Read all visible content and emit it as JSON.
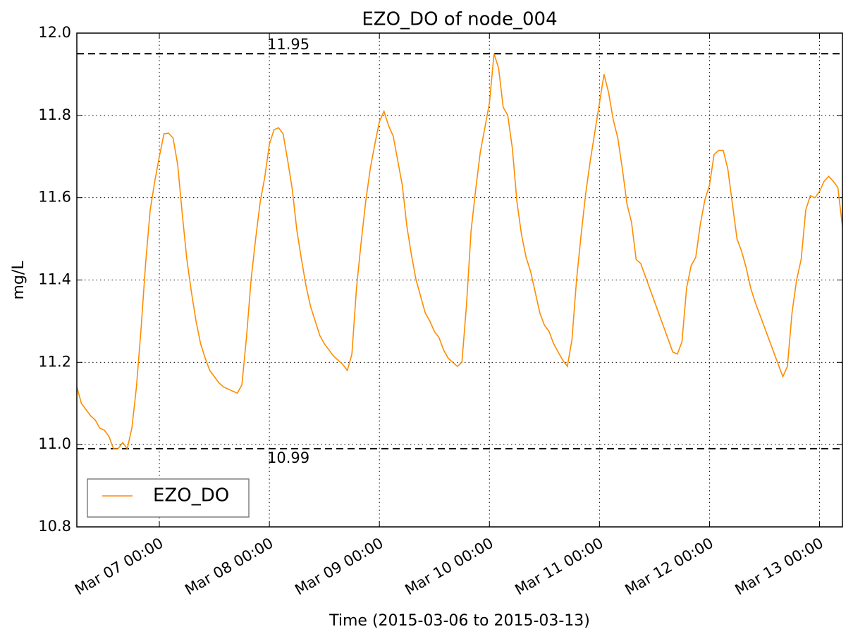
{
  "chart_data": {
    "type": "line",
    "title": "EZO_DO of node_004",
    "xlabel": "Time (2015-03-06 to 2015-03-13)",
    "ylabel": "mg/L",
    "x": [
      "Mar 06 06:00",
      "Mar 06 07:00",
      "Mar 06 08:00",
      "Mar 06 09:00",
      "Mar 06 10:00",
      "Mar 06 11:00",
      "Mar 06 12:00",
      "Mar 06 13:00",
      "Mar 06 14:00",
      "Mar 06 15:00",
      "Mar 06 16:00",
      "Mar 06 17:00",
      "Mar 06 18:00",
      "Mar 06 19:00",
      "Mar 06 20:00",
      "Mar 06 21:00",
      "Mar 06 22:00",
      "Mar 06 23:00",
      "Mar 07 00:00",
      "Mar 07 01:00",
      "Mar 07 02:00",
      "Mar 07 03:00",
      "Mar 07 04:00",
      "Mar 07 05:00",
      "Mar 07 06:00",
      "Mar 07 07:00",
      "Mar 07 08:00",
      "Mar 07 09:00",
      "Mar 07 10:00",
      "Mar 07 11:00",
      "Mar 07 12:00",
      "Mar 07 13:00",
      "Mar 07 14:00",
      "Mar 07 15:00",
      "Mar 07 16:00",
      "Mar 07 17:00",
      "Mar 07 18:00",
      "Mar 07 19:00",
      "Mar 07 20:00",
      "Mar 07 21:00",
      "Mar 07 22:00",
      "Mar 07 23:00",
      "Mar 08 00:00",
      "Mar 08 01:00",
      "Mar 08 02:00",
      "Mar 08 03:00",
      "Mar 08 04:00",
      "Mar 08 05:00",
      "Mar 08 06:00",
      "Mar 08 07:00",
      "Mar 08 08:00",
      "Mar 08 09:00",
      "Mar 08 10:00",
      "Mar 08 11:00",
      "Mar 08 12:00",
      "Mar 08 13:00",
      "Mar 08 14:00",
      "Mar 08 15:00",
      "Mar 08 16:00",
      "Mar 08 17:00",
      "Mar 08 18:00",
      "Mar 08 19:00",
      "Mar 08 20:00",
      "Mar 08 21:00",
      "Mar 08 22:00",
      "Mar 08 23:00",
      "Mar 09 00:00",
      "Mar 09 01:00",
      "Mar 09 02:00",
      "Mar 09 03:00",
      "Mar 09 04:00",
      "Mar 09 05:00",
      "Mar 09 06:00",
      "Mar 09 07:00",
      "Mar 09 08:00",
      "Mar 09 09:00",
      "Mar 09 10:00",
      "Mar 09 11:00",
      "Mar 09 12:00",
      "Mar 09 13:00",
      "Mar 09 14:00",
      "Mar 09 15:00",
      "Mar 09 16:00",
      "Mar 09 17:00",
      "Mar 09 18:00",
      "Mar 09 19:00",
      "Mar 09 20:00",
      "Mar 09 21:00",
      "Mar 09 22:00",
      "Mar 09 23:00",
      "Mar 10 00:00",
      "Mar 10 01:00",
      "Mar 10 02:00",
      "Mar 10 03:00",
      "Mar 10 04:00",
      "Mar 10 05:00",
      "Mar 10 06:00",
      "Mar 10 07:00",
      "Mar 10 08:00",
      "Mar 10 09:00",
      "Mar 10 10:00",
      "Mar 10 11:00",
      "Mar 10 12:00",
      "Mar 10 13:00",
      "Mar 10 14:00",
      "Mar 10 15:00",
      "Mar 10 16:00",
      "Mar 10 17:00",
      "Mar 10 18:00",
      "Mar 10 19:00",
      "Mar 10 20:00",
      "Mar 10 21:00",
      "Mar 10 22:00",
      "Mar 10 23:00",
      "Mar 11 00:00",
      "Mar 11 01:00",
      "Mar 11 02:00",
      "Mar 11 03:00",
      "Mar 11 04:00",
      "Mar 11 05:00",
      "Mar 11 06:00",
      "Mar 11 07:00",
      "Mar 11 08:00",
      "Mar 11 09:00",
      "Mar 11 16:00",
      "Mar 11 17:00",
      "Mar 11 18:00",
      "Mar 11 19:00",
      "Mar 11 20:00",
      "Mar 11 21:00",
      "Mar 11 22:00",
      "Mar 11 23:00",
      "Mar 12 00:00",
      "Mar 12 01:00",
      "Mar 12 02:00",
      "Mar 12 03:00",
      "Mar 12 04:00",
      "Mar 12 05:00",
      "Mar 12 06:00",
      "Mar 12 07:00",
      "Mar 12 08:00",
      "Mar 12 09:00",
      "Mar 12 10:00",
      "Mar 12 16:00",
      "Mar 12 17:00",
      "Mar 12 18:00",
      "Mar 12 19:00",
      "Mar 12 20:00",
      "Mar 12 21:00",
      "Mar 12 22:00",
      "Mar 12 23:00",
      "Mar 13 00:00",
      "Mar 13 01:00",
      "Mar 13 02:00",
      "Mar 13 03:00",
      "Mar 13 04:00",
      "Mar 13 05:00"
    ],
    "series": [
      {
        "name": "EZO_DO",
        "color": "#ff8c00",
        "values": [
          11.14,
          11.1,
          11.085,
          11.07,
          11.06,
          11.04,
          11.035,
          11.02,
          10.99,
          10.99,
          11.005,
          10.99,
          11.04,
          11.14,
          11.28,
          11.44,
          11.57,
          11.64,
          11.7,
          11.755,
          11.757,
          11.745,
          11.68,
          11.56,
          11.45,
          11.37,
          11.3,
          11.245,
          11.21,
          11.18,
          11.165,
          11.15,
          11.14,
          11.135,
          11.13,
          11.125,
          11.145,
          11.26,
          11.4,
          11.5,
          11.59,
          11.65,
          11.73,
          11.765,
          11.77,
          11.755,
          11.69,
          11.62,
          11.52,
          11.45,
          11.385,
          11.335,
          11.3,
          11.265,
          11.245,
          11.23,
          11.215,
          11.205,
          11.195,
          11.18,
          11.22,
          11.38,
          11.49,
          11.59,
          11.67,
          11.73,
          11.785,
          11.81,
          11.775,
          11.75,
          11.69,
          11.63,
          11.53,
          11.46,
          11.4,
          11.36,
          11.32,
          11.3,
          11.275,
          11.26,
          11.23,
          11.21,
          11.2,
          11.19,
          11.2,
          11.34,
          11.52,
          11.62,
          11.71,
          11.77,
          11.83,
          11.95,
          11.915,
          11.82,
          11.8,
          11.72,
          11.59,
          11.51,
          11.455,
          11.42,
          11.37,
          11.32,
          11.29,
          11.275,
          11.245,
          11.225,
          11.205,
          11.19,
          11.255,
          11.4,
          11.51,
          11.61,
          11.69,
          11.76,
          11.83,
          11.9,
          11.855,
          11.79,
          11.745,
          11.67,
          11.585,
          11.54,
          11.45,
          11.44,
          11.225,
          11.22,
          11.25,
          11.38,
          11.435,
          11.455,
          11.535,
          11.595,
          11.63,
          11.705,
          11.715,
          11.715,
          11.67,
          11.585,
          11.5,
          11.47,
          11.43,
          11.38,
          11.345,
          11.165,
          11.19,
          11.32,
          11.4,
          11.45,
          11.57,
          11.605,
          11.6,
          11.615,
          11.64,
          11.652,
          11.64,
          11.625,
          11.53
        ]
      }
    ],
    "xlim": [
      "Mar 06 06:00",
      "Mar 13 05:00"
    ],
    "xticks": [
      "Mar 07 00:00",
      "Mar 08 00:00",
      "Mar 09 00:00",
      "Mar 10 00:00",
      "Mar 11 00:00",
      "Mar 12 00:00",
      "Mar 13 00:00"
    ],
    "ylim": [
      10.8,
      12.0
    ],
    "yticks": [
      10.8,
      {
        "value": 11,
        "label": "11.0"
      },
      11.2,
      11.4,
      11.6,
      11.8,
      {
        "value": 12,
        "label": "12.0"
      }
    ],
    "hlines": [
      11.95,
      10.99
    ],
    "grid": true,
    "legend": "lower left"
  }
}
